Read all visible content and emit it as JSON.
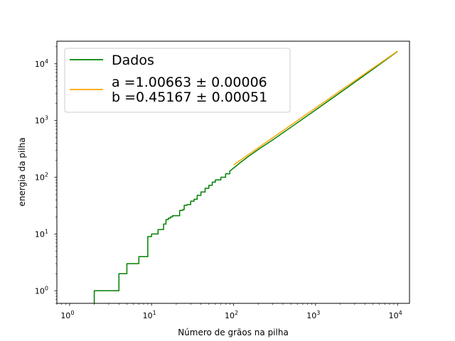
{
  "chart_data": {
    "type": "line",
    "xscale": "log",
    "yscale": "log",
    "xlabel": "Número de grãos na pilha",
    "ylabel": "energia da pilha",
    "xlim": [
      0.7,
      14000
    ],
    "ylim": [
      0.6,
      25000
    ],
    "xticks": [
      {
        "base": "10",
        "exp": "0",
        "value": 1
      },
      {
        "base": "10",
        "exp": "1",
        "value": 10
      },
      {
        "base": "10",
        "exp": "2",
        "value": 100
      },
      {
        "base": "10",
        "exp": "3",
        "value": 1000
      },
      {
        "base": "10",
        "exp": "4",
        "value": 10000
      }
    ],
    "yticks": [
      {
        "base": "10",
        "exp": "0",
        "value": 1
      },
      {
        "base": "10",
        "exp": "1",
        "value": 10
      },
      {
        "base": "10",
        "exp": "2",
        "value": 100
      },
      {
        "base": "10",
        "exp": "3",
        "value": 1000
      },
      {
        "base": "10",
        "exp": "4",
        "value": 10000
      }
    ],
    "grid": false,
    "legend_position": "top-left",
    "series": [
      {
        "name": "Dados",
        "color": "#008000",
        "step": true,
        "x": [
          2,
          3,
          4,
          5,
          6,
          7,
          8,
          9,
          10,
          11,
          12,
          13,
          14,
          15,
          16,
          17,
          18,
          20,
          22,
          24,
          25,
          27,
          30,
          33,
          36,
          40,
          45,
          50,
          55,
          60,
          70,
          80,
          90,
          100,
          120,
          150,
          200,
          300,
          500,
          1000,
          2000,
          5000,
          10000
        ],
        "y": [
          1,
          1,
          2,
          3,
          3,
          4,
          4,
          9,
          10,
          10,
          12,
          12,
          15,
          18,
          19,
          20,
          21,
          21,
          26,
          27,
          32,
          33,
          38,
          41,
          48,
          55,
          64,
          72,
          82,
          90,
          100,
          115,
          128,
          145,
          180,
          230,
          308,
          455,
          760,
          1530,
          3100,
          8000,
          16500
        ]
      },
      {
        "name": "a =1.00663 ± 0.00006\nb =0.45167 ± 0.00051",
        "color": "#FFA500",
        "x": [
          100,
          10000
        ],
        "y": [
          165.3,
          16720
        ]
      }
    ]
  },
  "legend": {
    "entries": [
      {
        "lines": [
          "Dados"
        ],
        "color": "#008000"
      },
      {
        "lines": [
          "a =1.00663 ± 0.00006",
          "b =0.45167 ± 0.00051"
        ],
        "color": "#FFA500"
      }
    ]
  }
}
